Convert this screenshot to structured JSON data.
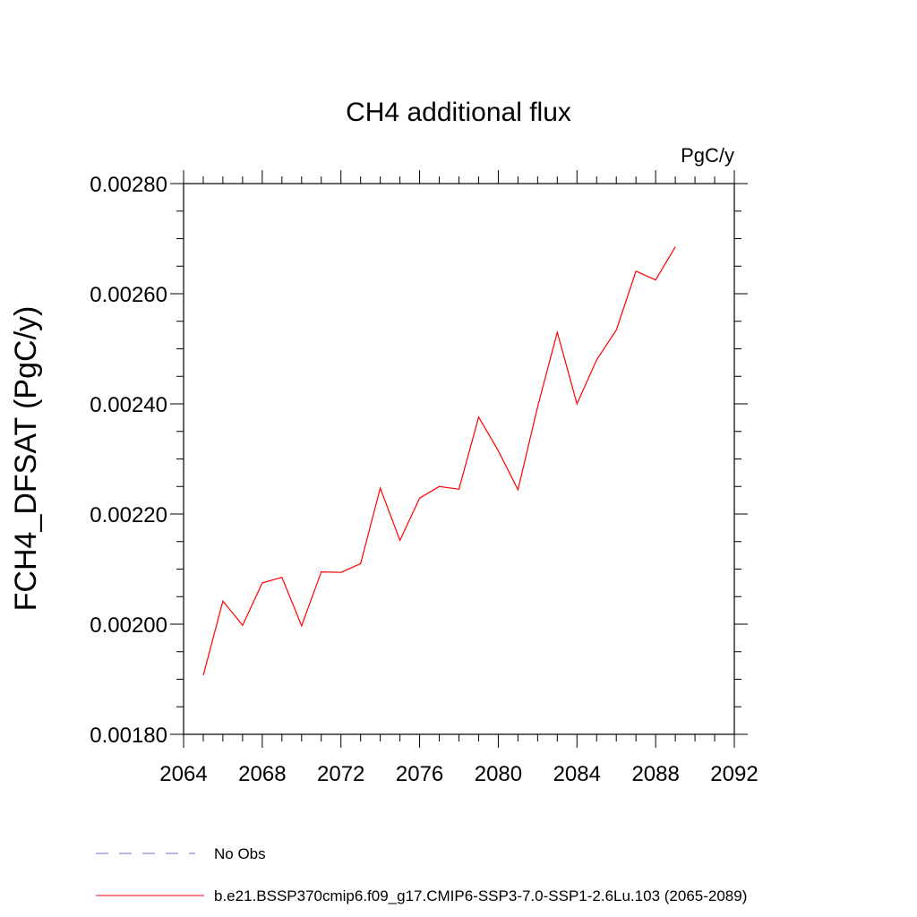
{
  "chart_data": {
    "type": "line",
    "title": "CH4 additional flux",
    "units": "PgC/y",
    "ylabel": "FCH4_DFSAT  (PgC/y)",
    "xlabel": "",
    "xlim": [
      2064,
      2092
    ],
    "ylim": [
      0.0018,
      0.0028
    ],
    "x_ticks": [
      "2064",
      "2068",
      "2072",
      "2076",
      "2080",
      "2084",
      "2088",
      "2092"
    ],
    "y_ticks": [
      "0.00180",
      "0.00200",
      "0.00220",
      "0.00240",
      "0.00260",
      "0.00280"
    ],
    "grid": false,
    "legend_position": "bottom",
    "legend": [
      {
        "label": "No Obs",
        "color": "#7b68b8",
        "style": "dashed"
      },
      {
        "label": "b.e21.BSSP370cmip6.f09_g17.CMIP6-SSP3-7.0-SSP1-2.6Lu.103 (2065-2089)",
        "color": "#ff0000",
        "style": "solid"
      }
    ],
    "series": [
      {
        "name": "b.e21.BSSP370cmip6.f09_g17.CMIP6-SSP3-7.0-SSP1-2.6Lu.103 (2065-2089)",
        "color": "#ff0000",
        "x": [
          2065,
          2066,
          2067,
          2068,
          2069,
          2070,
          2071,
          2072,
          2073,
          2074,
          2075,
          2076,
          2077,
          2078,
          2079,
          2080,
          2081,
          2082,
          2083,
          2084,
          2085,
          2086,
          2087,
          2088,
          2089
        ],
        "y": [
          0.001907,
          0.002042,
          0.001998,
          0.002075,
          0.002085,
          0.001997,
          0.002095,
          0.002094,
          0.00211,
          0.002247,
          0.002152,
          0.002229,
          0.00225,
          0.002245,
          0.002376,
          0.002315,
          0.002244,
          0.002395,
          0.00253,
          0.0024,
          0.00248,
          0.002534,
          0.002641,
          0.002625,
          0.002685
        ]
      }
    ]
  }
}
